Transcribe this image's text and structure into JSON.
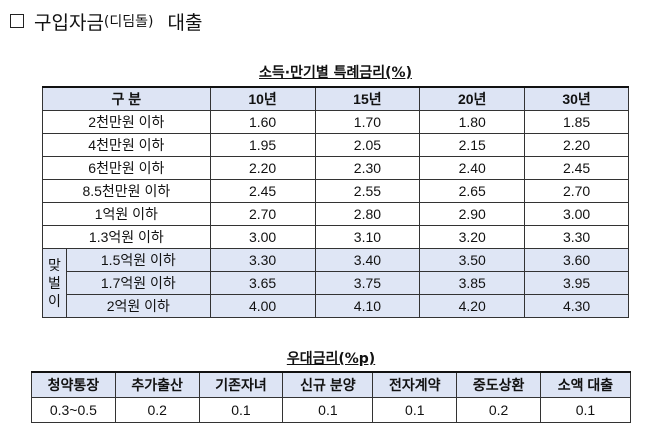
{
  "heading": {
    "box": "□",
    "main": "구입자금",
    "sub": "(디딤돌)",
    "tail": "대출"
  },
  "rate_table": {
    "caption": "소득·만기별 특례금리(%)",
    "headers": [
      "구 분",
      "10년",
      "15년",
      "20년",
      "30년"
    ],
    "side_label": [
      "맞",
      "벌",
      "이"
    ],
    "rows": [
      {
        "label": "2천만원 이하",
        "values": [
          "1.60",
          "1.70",
          "1.80",
          "1.85"
        ]
      },
      {
        "label": "4천만원 이하",
        "values": [
          "1.95",
          "2.05",
          "2.15",
          "2.20"
        ]
      },
      {
        "label": "6천만원 이하",
        "values": [
          "2.20",
          "2.30",
          "2.40",
          "2.45"
        ]
      },
      {
        "label": "8.5천만원 이하",
        "values": [
          "2.45",
          "2.55",
          "2.65",
          "2.70"
        ]
      },
      {
        "label": "1억원 이하",
        "values": [
          "2.70",
          "2.80",
          "2.90",
          "3.00"
        ]
      },
      {
        "label": "1.3억원 이하",
        "values": [
          "3.00",
          "3.10",
          "3.20",
          "3.30"
        ]
      },
      {
        "label": "1.5억원 이하",
        "values": [
          "3.30",
          "3.40",
          "3.50",
          "3.60"
        ]
      },
      {
        "label": "1.7억원 이하",
        "values": [
          "3.65",
          "3.75",
          "3.85",
          "3.95"
        ]
      },
      {
        "label": "2억원 이하",
        "values": [
          "4.00",
          "4.10",
          "4.20",
          "4.30"
        ]
      }
    ]
  },
  "pref_table": {
    "caption": "우대금리(%p)",
    "headers": [
      "청약통장",
      "추가출산",
      "기존자녀",
      "신규 분양",
      "전자계약",
      "중도상환",
      "소액 대출"
    ],
    "values": [
      "0.3~0.5",
      "0.2",
      "0.1",
      "0.1",
      "0.1",
      "0.2",
      "0.1"
    ]
  },
  "colors": {
    "header_bg": "#dde4f4",
    "highlight_bg": "#dfe6f5"
  }
}
